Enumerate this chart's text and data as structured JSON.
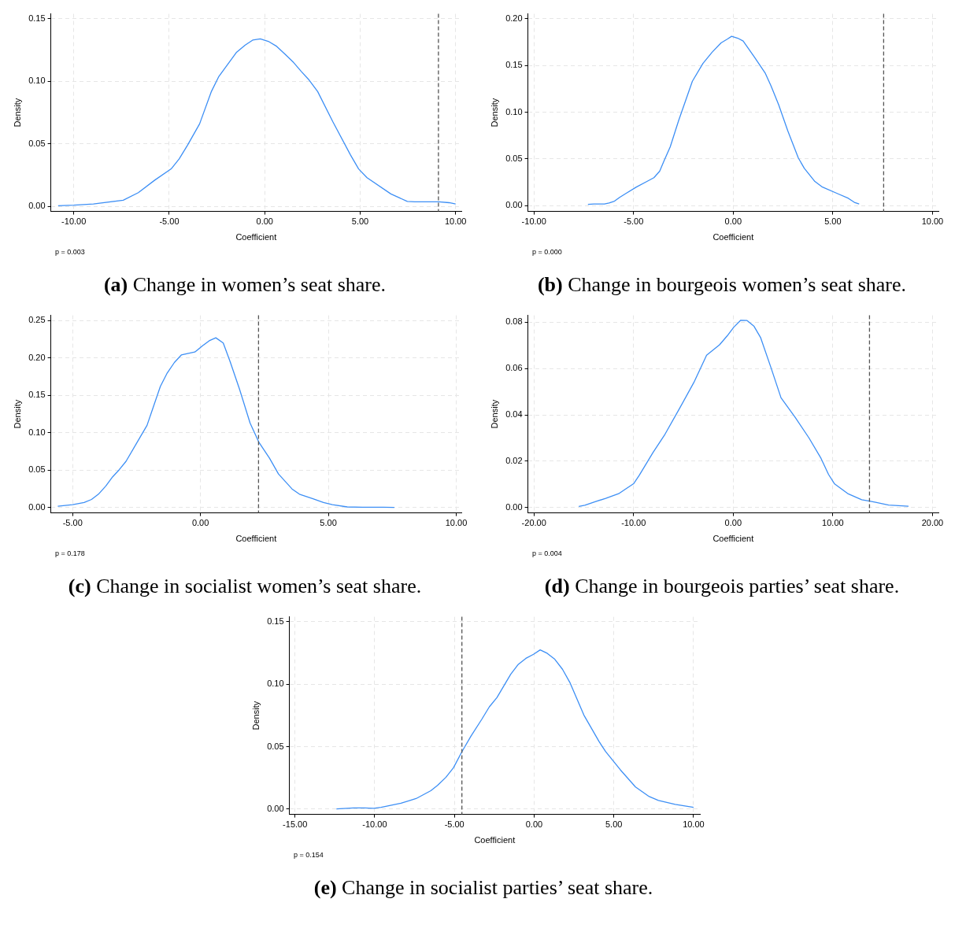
{
  "chart_data": [
    {
      "type": "line",
      "title": "(a) Change in women’s seat share.",
      "xlabel": "Coefficient",
      "ylabel": "Density",
      "annotations": [
        "p = 0.003"
      ],
      "xlim": [
        -11.2,
        10.3
      ],
      "ylim": [
        -0.004,
        0.154
      ],
      "xticks": [
        {
          "value": -10,
          "label": "-10.00"
        },
        {
          "value": -5,
          "label": "-5.00"
        },
        {
          "value": 0,
          "label": "0.00"
        },
        {
          "value": 5,
          "label": "5.00"
        },
        {
          "value": 10,
          "label": "10.00"
        }
      ],
      "yticks": [
        {
          "value": 0,
          "label": "0.00"
        },
        {
          "value": 0.05,
          "label": "0.05"
        },
        {
          "value": 0.1,
          "label": "0.10"
        },
        {
          "value": 0.15,
          "label": "0.15"
        }
      ],
      "grid": true,
      "ref_lines": [
        {
          "axis": "x",
          "value": 9.1,
          "color": "#555555",
          "line_style": "dashed"
        }
      ],
      "series": [
        {
          "color": "#3d8ff5",
          "x": [
            -10.82,
            -10,
            -8.97,
            -7.41,
            -6.62,
            -5.76,
            -4.9,
            -4.48,
            -4.04,
            -3.41,
            -2.79,
            -2.4,
            -1.49,
            -1.02,
            -0.63,
            -0.23,
            0.19,
            0.63,
            1.05,
            1.52,
            1.91,
            2.33,
            2.77,
            3.56,
            4.5,
            4.92,
            5.36,
            6.61,
            7.47,
            7.86,
            9.12,
            9.66,
            10.0
          ],
          "values": [
            0.0005,
            0.001,
            0.002,
            0.005,
            0.011,
            0.021,
            0.03,
            0.038,
            0.049,
            0.066,
            0.092,
            0.104,
            0.123,
            0.129,
            0.133,
            0.134,
            0.132,
            0.128,
            0.122,
            0.115,
            0.108,
            0.101,
            0.092,
            0.068,
            0.041,
            0.03,
            0.023,
            0.01,
            0.004,
            0.0037,
            0.0037,
            0.003,
            0.002
          ]
        }
      ]
    },
    {
      "type": "line",
      "title": "(b) Change in bourgeois women’s seat share.",
      "xlabel": "Coefficient",
      "ylabel": "Density",
      "annotations": [
        "p = 0.000"
      ],
      "xlim": [
        -10.3,
        10.3
      ],
      "ylim": [
        -0.006,
        0.205
      ],
      "xticks": [
        {
          "value": -10,
          "label": "-10.00"
        },
        {
          "value": -5,
          "label": "-5.00"
        },
        {
          "value": 0,
          "label": "0.00"
        },
        {
          "value": 5,
          "label": "5.00"
        },
        {
          "value": 10,
          "label": "10.00"
        }
      ],
      "yticks": [
        {
          "value": 0,
          "label": "0.00"
        },
        {
          "value": 0.05,
          "label": "0.05"
        },
        {
          "value": 0.1,
          "label": "0.10"
        },
        {
          "value": 0.15,
          "label": "0.15"
        },
        {
          "value": 0.2,
          "label": "0.20"
        }
      ],
      "grid": true,
      "ref_lines": [
        {
          "axis": "x",
          "value": 7.55,
          "color": "#555555",
          "line_style": "dashed"
        }
      ],
      "series": [
        {
          "color": "#3d8ff5",
          "x": [
            -7.29,
            -6.99,
            -6.46,
            -6.23,
            -5.96,
            -5.7,
            -5.4,
            -4.86,
            -4.33,
            -3.98,
            -3.69,
            -3.47,
            -3.16,
            -2.74,
            -2.05,
            -1.52,
            -1.06,
            -0.61,
            -0.3,
            -0.08,
            0.23,
            0.5,
            1.06,
            1.6,
            1.9,
            2.28,
            2.74,
            3.27,
            3.57,
            4.1,
            4.48,
            5.24,
            5.78,
            6.08,
            6.32
          ],
          "values": [
            0.0016,
            0.002,
            0.002,
            0.003,
            0.005,
            0.009,
            0.013,
            0.02,
            0.026,
            0.03,
            0.037,
            0.048,
            0.063,
            0.091,
            0.133,
            0.152,
            0.164,
            0.174,
            0.178,
            0.181,
            0.179,
            0.176,
            0.159,
            0.142,
            0.128,
            0.108,
            0.08,
            0.051,
            0.04,
            0.026,
            0.02,
            0.013,
            0.008,
            0.0037,
            0.002
          ]
        }
      ]
    },
    {
      "type": "line",
      "title": "(c) Change in socialist women’s seat share.",
      "xlabel": "Coefficient",
      "ylabel": "Density",
      "annotations": [
        "p = 0.178"
      ],
      "xlim": [
        -5.85,
        10.2
      ],
      "ylim": [
        -0.007,
        0.257
      ],
      "xticks": [
        {
          "value": -5,
          "label": "-5.00"
        },
        {
          "value": 0,
          "label": "0.00"
        },
        {
          "value": 5,
          "label": "5.00"
        },
        {
          "value": 10,
          "label": "10.00"
        }
      ],
      "yticks": [
        {
          "value": 0,
          "label": "0.00"
        },
        {
          "value": 0.05,
          "label": "0.05"
        },
        {
          "value": 0.1,
          "label": "0.10"
        },
        {
          "value": 0.15,
          "label": "0.15"
        },
        {
          "value": 0.2,
          "label": "0.20"
        },
        {
          "value": 0.25,
          "label": "0.25"
        }
      ],
      "grid": true,
      "ref_lines": [
        {
          "axis": "x",
          "value": 2.27,
          "color": "#555555",
          "line_style": "dashed"
        }
      ],
      "series": [
        {
          "color": "#3d8ff5",
          "x": [
            -5.58,
            -5,
            -4.55,
            -4.26,
            -3.99,
            -3.7,
            -3.44,
            -3.17,
            -2.91,
            -2.45,
            -2.09,
            -1.86,
            -1.57,
            -1.3,
            -1.02,
            -0.75,
            -0.22,
            0.07,
            0.34,
            0.6,
            0.89,
            1.16,
            1.53,
            1.94,
            2.29,
            2.7,
            3.05,
            3.58,
            3.87,
            4.4,
            4.81,
            5.16,
            5.74,
            6.33,
            7.15,
            7.58
          ],
          "values": [
            0.002,
            0.004,
            0.007,
            0.011,
            0.018,
            0.029,
            0.041,
            0.051,
            0.062,
            0.089,
            0.11,
            0.133,
            0.162,
            0.18,
            0.194,
            0.204,
            0.208,
            0.216,
            0.223,
            0.227,
            0.22,
            0.195,
            0.158,
            0.113,
            0.087,
            0.066,
            0.045,
            0.025,
            0.018,
            0.012,
            0.007,
            0.004,
            0.001,
            0.0005,
            0.0005,
            0.0004
          ]
        }
      ]
    },
    {
      "type": "line",
      "title": "(d) Change in bourgeois parties’ seat share.",
      "xlabel": "Coefficient",
      "ylabel": "Density",
      "annotations": [
        "p = 0.004"
      ],
      "xlim": [
        -20.6,
        20.6
      ],
      "ylim": [
        -0.0023,
        0.083
      ],
      "xticks": [
        {
          "value": -20,
          "label": "-20.00"
        },
        {
          "value": -10,
          "label": "-10.00"
        },
        {
          "value": 0,
          "label": "0.00"
        },
        {
          "value": 10,
          "label": "10.00"
        },
        {
          "value": 20,
          "label": "20.00"
        }
      ],
      "yticks": [
        {
          "value": 0,
          "label": "0.00"
        },
        {
          "value": 0.02,
          "label": "0.02"
        },
        {
          "value": 0.04,
          "label": "0.04"
        },
        {
          "value": 0.06,
          "label": "0.06"
        },
        {
          "value": 0.08,
          "label": "0.08"
        }
      ],
      "grid": true,
      "ref_lines": [
        {
          "axis": "x",
          "value": 13.68,
          "color": "#555555",
          "line_style": "dashed"
        }
      ],
      "series": [
        {
          "color": "#3d8ff5",
          "x": [
            -15.5,
            -14.9,
            -13.8,
            -12.8,
            -11.5,
            -10.8,
            -10.0,
            -9.42,
            -8.05,
            -6.84,
            -5.32,
            -3.95,
            -2.67,
            -1.37,
            -0.61,
            0.06,
            0.76,
            1.37,
            2.07,
            2.74,
            3.8,
            4.8,
            6.23,
            7.6,
            8.81,
            9.57,
            10.18,
            11.55,
            12.9,
            13.7,
            14.3,
            15.6,
            17.6
          ],
          "values": [
            0.0005,
            0.001,
            0.0026,
            0.004,
            0.006,
            0.008,
            0.0103,
            0.014,
            0.0238,
            0.0317,
            0.0433,
            0.054,
            0.0658,
            0.0703,
            0.0741,
            0.0779,
            0.0809,
            0.0808,
            0.0784,
            0.0735,
            0.0603,
            0.0474,
            0.0389,
            0.0301,
            0.0213,
            0.0143,
            0.0102,
            0.0059,
            0.0034,
            0.0028,
            0.0023,
            0.0011,
            0.0006
          ]
        }
      ]
    },
    {
      "type": "line",
      "title": "(e) Change in socialist parties’ seat share.",
      "xlabel": "Coefficient",
      "ylabel": "Density",
      "annotations": [
        "p = 0.154"
      ],
      "xlim": [
        -15.35,
        10.4
      ],
      "ylim": [
        -0.0042,
        0.154
      ],
      "xticks": [
        {
          "value": -15,
          "label": "-15.00"
        },
        {
          "value": -10,
          "label": "-10.00"
        },
        {
          "value": -5,
          "label": "-5.00"
        },
        {
          "value": 0,
          "label": "0.00"
        },
        {
          "value": 5,
          "label": "5.00"
        },
        {
          "value": 10,
          "label": "10.00"
        }
      ],
      "yticks": [
        {
          "value": 0,
          "label": "0.00"
        },
        {
          "value": 0.05,
          "label": "0.05"
        },
        {
          "value": 0.1,
          "label": "0.10"
        },
        {
          "value": 0.15,
          "label": "0.15"
        }
      ],
      "grid": true,
      "ref_lines": [
        {
          "axis": "x",
          "value": -4.53,
          "color": "#555555",
          "line_style": "dashed"
        }
      ],
      "series": [
        {
          "color": "#3d8ff5",
          "x": [
            -12.4,
            -11.3,
            -10.65,
            -10.07,
            -9.6,
            -8.35,
            -7.4,
            -6.48,
            -6.06,
            -5.54,
            -5.06,
            -4.53,
            -3.96,
            -3.29,
            -2.81,
            -2.33,
            -1.47,
            -0.99,
            -0.52,
            -0.04,
            0.38,
            0.82,
            1.3,
            1.78,
            2.26,
            3.12,
            4.07,
            4.49,
            5.41,
            6.36,
            7.22,
            7.8,
            8.85,
            10.0
          ],
          "values": [
            0.0002,
            0.001,
            0.001,
            0.0007,
            0.0014,
            0.0047,
            0.0085,
            0.0148,
            0.019,
            0.0254,
            0.0331,
            0.046,
            0.0585,
            0.0718,
            0.0819,
            0.0894,
            0.108,
            0.116,
            0.1207,
            0.124,
            0.1275,
            0.1248,
            0.12,
            0.112,
            0.101,
            0.0754,
            0.0542,
            0.046,
            0.0315,
            0.0178,
            0.0101,
            0.007,
            0.0038,
            0.0014
          ]
        }
      ]
    }
  ]
}
